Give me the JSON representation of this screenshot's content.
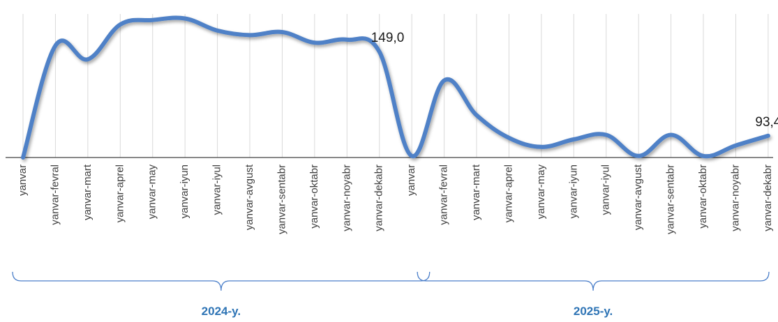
{
  "chart_data": {
    "type": "line",
    "categories": [
      "yanvar",
      "yanvar-fevral",
      "yanvar-mart",
      "yanvar-aprel",
      "yanvar-may",
      "yanvar-iyun",
      "yanvar-iyul",
      "yanvar-avgust",
      "yanvar-sentabr",
      "yanvar-oktabr",
      "yanvar-noyabr",
      "yanvar-dekabr",
      "yanvar",
      "yanvar-fevral",
      "yanvar-mart",
      "yanvar-aprel",
      "yanvar-may",
      "yanvar-iyun",
      "yanvar-iyul",
      "yanvar-avgust",
      "yanvar-sentabr",
      "yanvar-oktabr",
      "yanvar-noyabr",
      "yanvar-dekabr"
    ],
    "values": [
      79,
      153,
      144,
      167,
      170,
      171,
      163,
      160,
      162,
      155,
      157,
      149,
      80,
      130,
      107,
      92,
      86,
      91,
      94,
      80,
      94,
      80,
      87,
      93.4
    ],
    "data_labels": [
      {
        "index": 11,
        "text": "149,0"
      },
      {
        "index": 23,
        "text": "93,4"
      }
    ],
    "groups": [
      {
        "label": "2024-y.",
        "start": 0,
        "end": 11
      },
      {
        "label": "2025-y.",
        "start": 12,
        "end": 23
      }
    ],
    "ylim": [
      79,
      174
    ],
    "grid": "vertical",
    "legend": "none",
    "line_color": "#4f81c7",
    "bracket_color": "#4a7ec9",
    "group_label_color": "#2e74b5"
  }
}
